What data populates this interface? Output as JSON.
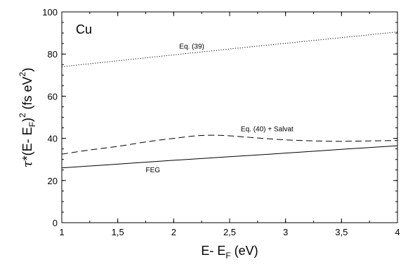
{
  "chart_data": {
    "type": "line",
    "title": "",
    "panel_label": "Cu",
    "xlabel": {
      "main": "E- E",
      "sub": "F",
      "unit": " (eV)"
    },
    "ylabel": {
      "tau": "τ",
      "mid": "*(E- E",
      "sub": "F",
      "close": ")",
      "sup": "2",
      "unit_open": " (fs eV",
      "unit_sup": "2",
      "unit_close": ")"
    },
    "xlim": [
      1,
      4
    ],
    "ylim": [
      0,
      100
    ],
    "x_ticks": [
      1,
      1.5,
      2,
      2.5,
      3,
      3.5,
      4
    ],
    "x_tick_labels": [
      "1",
      "1,5",
      "2",
      "2,5",
      "3",
      "3,5",
      "4"
    ],
    "y_ticks": [
      0,
      20,
      40,
      60,
      80,
      100
    ],
    "y_tick_labels": [
      "0",
      "20",
      "40",
      "60",
      "80",
      "100"
    ],
    "grid": false,
    "series": [
      {
        "name": "Eq. (39)",
        "style": "dotted",
        "x": [
          1,
          1.5,
          2,
          2.5,
          3,
          3.5,
          4
        ],
        "y": [
          74,
          76.8,
          79.6,
          82.4,
          85.1,
          87.8,
          90.5
        ]
      },
      {
        "name": "Eq. (40) + Salvat",
        "style": "dashed",
        "x": [
          1,
          1.25,
          1.5,
          1.75,
          2,
          2.2,
          2.35,
          2.5,
          2.75,
          3,
          3.25,
          3.5,
          3.75,
          4
        ],
        "y": [
          32.5,
          34.5,
          36.2,
          38.3,
          40.0,
          41.2,
          41.5,
          41.2,
          40.2,
          39.3,
          38.8,
          38.6,
          38.8,
          39.0
        ]
      },
      {
        "name": "FEG",
        "style": "solid",
        "x": [
          1,
          1.5,
          2,
          2.5,
          3,
          3.5,
          4
        ],
        "y": [
          26,
          27.8,
          29.6,
          31.3,
          33.0,
          34.8,
          36.5
        ]
      }
    ],
    "annotations": [
      {
        "text": "Eq. (39)",
        "x": 2.05,
        "y": 82.5
      },
      {
        "text": "Eq. (40) + Salvat",
        "x": 2.6,
        "y": 43.3
      },
      {
        "text": "FEG",
        "x": 1.75,
        "y": 24.0
      }
    ]
  }
}
